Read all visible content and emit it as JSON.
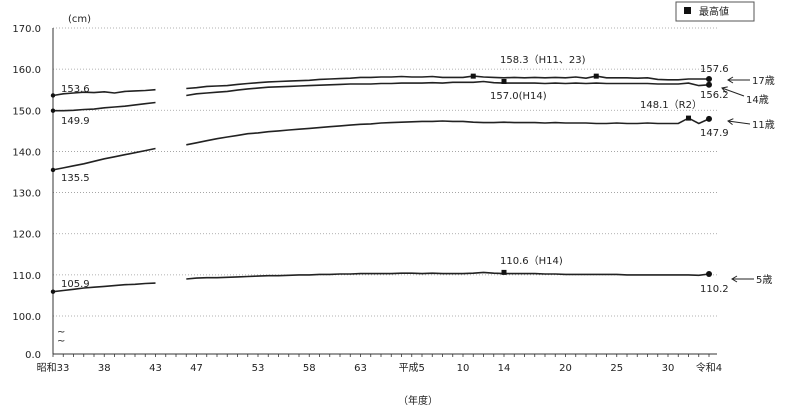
{
  "chart_data": {
    "type": "line",
    "unit": "(cm)",
    "xlabel": "（年度）",
    "ylim": [
      0,
      170
    ],
    "yticks": [
      "0.0",
      "100.0",
      "110.0",
      "120.0",
      "130.0",
      "140.0",
      "150.0",
      "160.0",
      "170.0"
    ],
    "axis_break": "~\n~",
    "legend": {
      "label": "最高値",
      "marker": "square",
      "position": "top-right"
    },
    "xticks": [
      {
        "year": 1958,
        "label": "昭和33"
      },
      {
        "year": 1963,
        "label": "38"
      },
      {
        "year": 1968,
        "label": "43"
      },
      {
        "year": 1972,
        "label": "47"
      },
      {
        "year": 1978,
        "label": "53"
      },
      {
        "year": 1983,
        "label": "58"
      },
      {
        "year": 1988,
        "label": "63"
      },
      {
        "year": 1993,
        "label": "平成5"
      },
      {
        "year": 1998,
        "label": "10"
      },
      {
        "year": 2002,
        "label": "14"
      },
      {
        "year": 2008,
        "label": "20"
      },
      {
        "year": 2013,
        "label": "25"
      },
      {
        "year": 2018,
        "label": "30"
      },
      {
        "year": 2022,
        "label": "令和4"
      }
    ],
    "gap_years": [
      1969,
      1970
    ],
    "series": [
      {
        "name": "17歳",
        "start": {
          "year": 1958,
          "value": 153.6
        },
        "end": {
          "year": 2022,
          "value": 157.6
        },
        "max": [
          {
            "year": 1999,
            "label": "158.3（H11、23)",
            "value": 158.3
          },
          {
            "year": 2011,
            "value": 158.3
          }
        ],
        "values": [
          153.6,
          154.0,
          154.2,
          154.4,
          154.3,
          154.5,
          154.2,
          154.6,
          154.7,
          154.8,
          155.0,
          null,
          null,
          155.3,
          155.5,
          155.8,
          155.9,
          156.0,
          156.3,
          156.5,
          156.7,
          156.9,
          157.0,
          157.1,
          157.2,
          157.3,
          157.5,
          157.6,
          157.7,
          157.8,
          158.0,
          158.0,
          158.1,
          158.1,
          158.2,
          158.1,
          158.1,
          158.2,
          158.0,
          158.0,
          158.0,
          158.3,
          158.1,
          158.0,
          157.9,
          158.0,
          157.9,
          158.0,
          157.9,
          158.0,
          157.9,
          158.1,
          157.8,
          158.3,
          157.9,
          157.9,
          157.9,
          157.8,
          157.9,
          157.5,
          157.4,
          157.4,
          157.6,
          157.6,
          157.6
        ]
      },
      {
        "name": "14歳",
        "start": {
          "year": 1958,
          "value": 149.9
        },
        "end": {
          "year": 2022,
          "value": 156.2
        },
        "max": [
          {
            "year": 2002,
            "label": "157.0(H14)",
            "value": 157.0
          }
        ],
        "values": [
          149.9,
          149.9,
          150.0,
          150.2,
          150.3,
          150.6,
          150.8,
          151.0,
          151.3,
          151.6,
          151.9,
          null,
          null,
          153.6,
          154.0,
          154.2,
          154.4,
          154.6,
          154.9,
          155.2,
          155.4,
          155.6,
          155.7,
          155.8,
          155.9,
          156.0,
          156.1,
          156.2,
          156.3,
          156.4,
          156.4,
          156.4,
          156.5,
          156.5,
          156.6,
          156.6,
          156.6,
          156.7,
          156.6,
          156.8,
          156.8,
          156.8,
          157.0,
          156.7,
          156.6,
          156.6,
          156.6,
          156.6,
          156.5,
          156.6,
          156.5,
          156.6,
          156.5,
          156.6,
          156.5,
          156.5,
          156.5,
          156.5,
          156.5,
          156.4,
          156.4,
          156.4,
          156.6,
          156.0,
          156.2
        ]
      },
      {
        "name": "11歳",
        "start": {
          "year": 1958,
          "value": 135.5
        },
        "end": {
          "year": 2022,
          "value": 147.9
        },
        "max": [
          {
            "year": 2020,
            "label": "148.1（R2）",
            "value": 148.1
          }
        ],
        "values": [
          135.5,
          136.0,
          136.5,
          137.0,
          137.6,
          138.2,
          138.7,
          139.2,
          139.7,
          140.2,
          140.7,
          null,
          null,
          141.6,
          142.1,
          142.6,
          143.1,
          143.5,
          143.9,
          144.3,
          144.5,
          144.8,
          145.0,
          145.2,
          145.4,
          145.6,
          145.8,
          146.0,
          146.2,
          146.4,
          146.6,
          146.7,
          146.9,
          147.0,
          147.1,
          147.2,
          147.3,
          147.3,
          147.4,
          147.3,
          147.3,
          147.1,
          147.0,
          147.0,
          147.1,
          147.0,
          147.0,
          147.0,
          146.9,
          147.0,
          146.9,
          146.9,
          146.9,
          146.8,
          146.8,
          146.9,
          146.8,
          146.8,
          146.9,
          146.8,
          146.8,
          146.8,
          148.1,
          146.8,
          147.9
        ]
      },
      {
        "name": "5歳",
        "start": {
          "year": 1958,
          "value": 105.9
        },
        "end": {
          "year": 2022,
          "value": 110.2
        },
        "max": [
          {
            "year": 2002,
            "label": "110.6（H14)",
            "value": 110.6
          }
        ],
        "values": [
          105.9,
          106.2,
          106.5,
          106.8,
          107.0,
          107.2,
          107.4,
          107.6,
          107.7,
          107.9,
          108.0,
          null,
          null,
          109.0,
          109.2,
          109.3,
          109.3,
          109.4,
          109.5,
          109.6,
          109.7,
          109.8,
          109.8,
          109.9,
          110.0,
          110.0,
          110.1,
          110.1,
          110.2,
          110.2,
          110.3,
          110.3,
          110.3,
          110.3,
          110.4,
          110.4,
          110.3,
          110.4,
          110.3,
          110.3,
          110.3,
          110.4,
          110.6,
          110.4,
          110.3,
          110.3,
          110.3,
          110.3,
          110.2,
          110.2,
          110.1,
          110.1,
          110.1,
          110.1,
          110.1,
          110.1,
          110.0,
          110.0,
          110.0,
          110.0,
          110.0,
          110.0,
          110.0,
          109.9,
          110.2
        ]
      }
    ]
  }
}
